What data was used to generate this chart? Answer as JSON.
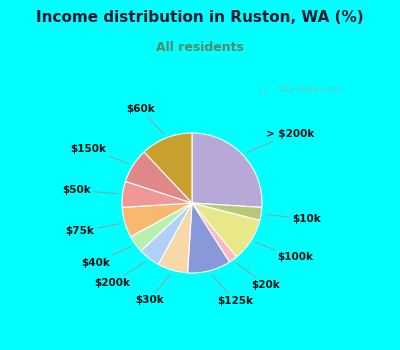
{
  "title": "Income distribution in Ruston, WA (%)",
  "subtitle": "All residents",
  "title_color": "#1a1a2e",
  "subtitle_color": "#558866",
  "bg_cyan": "#00ffff",
  "bg_chart_color": "#d8f0e4",
  "watermark": "City-Data.com",
  "labels": [
    "> $200k",
    "$10k",
    "$100k",
    "$20k",
    "$125k",
    "$30k",
    "$200k",
    "$40k",
    "$75k",
    "$50k",
    "$150k",
    "$60k"
  ],
  "values": [
    26,
    3,
    10,
    2,
    10,
    7,
    5,
    4,
    7,
    6,
    8,
    12
  ],
  "colors": [
    "#b8a8d8",
    "#b8c878",
    "#e8e888",
    "#ffb8c0",
    "#8898d8",
    "#f8d8a8",
    "#b0d0f8",
    "#b8f0b0",
    "#f8b870",
    "#f09898",
    "#e08888",
    "#c8a030"
  ],
  "label_fontsize": 7.5,
  "figsize": [
    4.0,
    3.5
  ],
  "dpi": 100
}
